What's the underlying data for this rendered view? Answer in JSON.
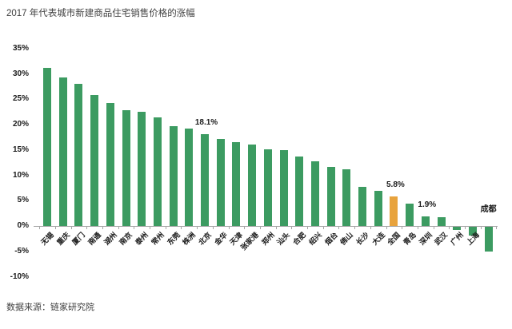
{
  "header": {
    "title": "2017 年代表城市新建商品住宅销售价格的涨幅"
  },
  "footer": {
    "source": "数据来源：链家研究院"
  },
  "chart_data": {
    "type": "bar",
    "title": "2017 年代表城市新建商品住宅销售价格的涨幅",
    "xlabel": "",
    "ylabel": "",
    "unit": "%",
    "ylim": [
      -10,
      35
    ],
    "yticks": [
      35,
      30,
      25,
      20,
      15,
      10,
      5,
      0,
      -5,
      -10
    ],
    "ytick_labels": [
      "35%",
      "30%",
      "25%",
      "20%",
      "15%",
      "10%",
      "5%",
      "0%",
      "-5%",
      "-10%"
    ],
    "grid": false,
    "legend": false,
    "bar_color": "#3c9b61",
    "highlight_color": "#e8a33d",
    "axis_color": "#a6a6a6",
    "highlight_category": "全国",
    "categories": [
      "无锡",
      "重庆",
      "厦门",
      "南通",
      "湖州",
      "南京",
      "泰州",
      "常州",
      "东莞",
      "株洲",
      "北京",
      "金华",
      "天津",
      "张家港",
      "郑州",
      "汕头",
      "合肥",
      "绍兴",
      "烟台",
      "佛山",
      "长沙",
      "大连",
      "全国",
      "青岛",
      "深圳",
      "武汉",
      "广州",
      "上海",
      "成都"
    ],
    "values": [
      31.2,
      29.3,
      28.0,
      25.8,
      24.3,
      22.8,
      22.5,
      21.5,
      19.7,
      19.2,
      18.1,
      17.1,
      16.6,
      16.0,
      15.2,
      15.0,
      13.7,
      12.8,
      11.7,
      11.2,
      7.8,
      7.0,
      5.8,
      4.4,
      1.9,
      1.8,
      -0.7,
      -1.7,
      -4.9
    ],
    "data_labels": [
      {
        "category": "北京",
        "text": "18.1%"
      },
      {
        "category": "全国",
        "text": "5.8%"
      },
      {
        "category": "深圳",
        "text": "1.9%"
      }
    ],
    "horizontal_label_categories": [
      "成都"
    ]
  }
}
